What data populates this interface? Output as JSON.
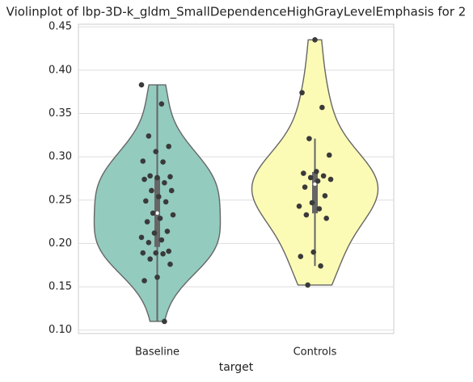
{
  "chart_data": {
    "type": "violin",
    "title": "Violinplot of lbp-3D-k_gldm_SmallDependenceHighGrayLevelEmphasis for 2",
    "xlabel": "target",
    "categories": [
      "Baseline",
      "Controls"
    ],
    "colors": [
      "#93cbbf",
      "#fbfbb6"
    ],
    "values": [
      [
        0.383,
        0.361,
        0.324,
        0.312,
        0.306,
        0.295,
        0.294,
        0.278,
        0.277,
        0.276,
        0.274,
        0.27,
        0.261,
        0.261,
        0.254,
        0.249,
        0.248,
        0.235,
        0.233,
        0.229,
        0.225,
        0.214,
        0.212,
        0.207,
        0.204,
        0.201,
        0.191,
        0.189,
        0.189,
        0.188,
        0.182,
        0.176,
        0.161,
        0.157,
        0.11
      ],
      [
        0.435,
        0.374,
        0.357,
        0.321,
        0.302,
        0.283,
        0.281,
        0.278,
        0.276,
        0.274,
        0.272,
        0.265,
        0.255,
        0.247,
        0.243,
        0.24,
        0.233,
        0.229,
        0.19,
        0.185,
        0.174,
        0.152
      ]
    ],
    "ylim": [
      0.096,
      0.453
    ],
    "yticks": [
      {
        "value": 0.1,
        "label": "0.10"
      },
      0.15,
      {
        "value": 0.2,
        "label": "0.20"
      },
      0.25,
      {
        "value": 0.3,
        "label": "0.30"
      },
      0.35,
      {
        "value": 0.4,
        "label": "0.40"
      },
      0.45
    ],
    "grid": true
  }
}
